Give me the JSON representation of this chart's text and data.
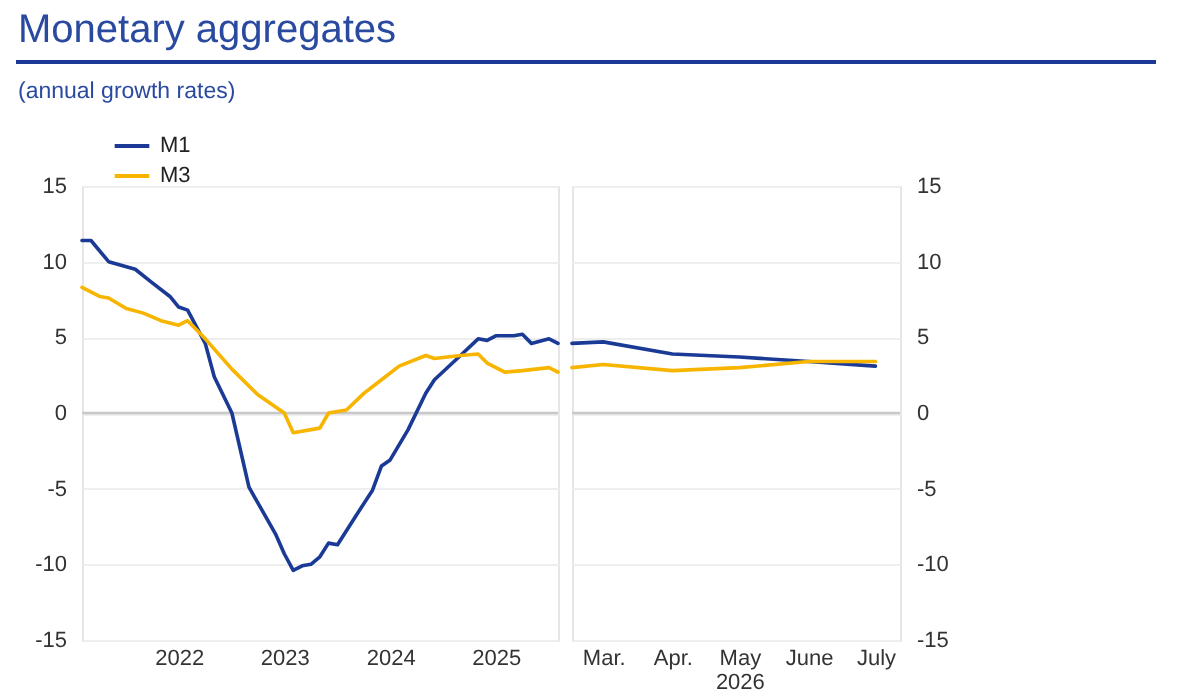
{
  "chart_data": [
    {
      "type": "line",
      "title": "Monetary aggregates",
      "subtitle": "(annual growth rates)",
      "series": [
        {
          "name": "M1",
          "color": "#1a3a95",
          "x": [
            "2021-08",
            "2021-09",
            "2021-11",
            "2022-02",
            "2022-04",
            "2022-06",
            "2022-07",
            "2022-08",
            "2022-10",
            "2022-11",
            "2023-01",
            "2023-03",
            "2023-06",
            "2023-07",
            "2023-08",
            "2023-09",
            "2023-10",
            "2023-11",
            "2023-12",
            "2024-01",
            "2024-03",
            "2024-05",
            "2024-06",
            "2024-07",
            "2024-09",
            "2024-11",
            "2024-12",
            "2025-03",
            "2025-05",
            "2025-06",
            "2025-07",
            "2025-09",
            "2025-10",
            "2025-11",
            "2026-01",
            "2026-02"
          ],
          "values": [
            11.4,
            11.4,
            10.0,
            9.5,
            8.6,
            7.7,
            7.0,
            6.8,
            4.6,
            2.4,
            0.0,
            -4.9,
            -8.0,
            -9.3,
            -10.4,
            -10.1,
            -10.0,
            -9.5,
            -8.6,
            -8.7,
            -6.9,
            -5.1,
            -3.5,
            -3.1,
            -1.1,
            1.3,
            2.2,
            3.8,
            4.9,
            4.8,
            5.1,
            5.1,
            5.2,
            4.6,
            4.9,
            4.6
          ]
        },
        {
          "name": "M3",
          "color": "#f7b500",
          "x": [
            "2021-08",
            "2021-10",
            "2021-11",
            "2022-01",
            "2022-03",
            "2022-05",
            "2022-07",
            "2022-08",
            "2022-10",
            "2023-01",
            "2023-04",
            "2023-07",
            "2023-08",
            "2023-11",
            "2023-12",
            "2024-02",
            "2024-04",
            "2024-06",
            "2024-08",
            "2024-11",
            "2024-12",
            "2025-03",
            "2025-05",
            "2025-06",
            "2025-08",
            "2025-10",
            "2026-01",
            "2026-02"
          ],
          "values": [
            8.3,
            7.7,
            7.6,
            6.9,
            6.6,
            6.1,
            5.8,
            6.1,
            4.9,
            2.9,
            1.2,
            0.0,
            -1.3,
            -1.0,
            0.0,
            0.2,
            1.3,
            2.2,
            3.1,
            3.8,
            3.6,
            3.8,
            3.9,
            3.3,
            2.7,
            2.8,
            3.0,
            2.7
          ]
        }
      ],
      "xlim": [
        "2021-08",
        "2026-02"
      ],
      "xticks": [
        {
          "value": "2022-07",
          "label": "2022"
        },
        {
          "value": "2023-07",
          "label": "2023"
        },
        {
          "value": "2024-07",
          "label": "2024"
        },
        {
          "value": "2025-07",
          "label": "2025"
        }
      ],
      "ylim": [
        -15,
        15
      ],
      "yticks": [
        -15,
        -10,
        -5,
        0,
        5,
        10,
        15
      ],
      "grid": "y",
      "legend": "top left",
      "ref_lines": [
        {
          "axis": "y",
          "value": 0,
          "color": "#c8c8c8"
        }
      ]
    },
    {
      "type": "line",
      "series": [
        {
          "color": "#1a3a95",
          "x": [
            "2026-02-15",
            "2026-03-01",
            "2026-04-01",
            "2026-05-01",
            "2026-06-01",
            "2026-07-01"
          ],
          "values": [
            4.6,
            4.7,
            3.9,
            3.7,
            3.4,
            3.1
          ]
        },
        {
          "color": "#f7b500",
          "x": [
            "2026-02-15",
            "2026-03-01",
            "2026-04-01",
            "2026-05-01",
            "2026-06-01",
            "2026-07-01"
          ],
          "values": [
            3.0,
            3.2,
            2.8,
            3.0,
            3.4,
            3.4
          ]
        }
      ],
      "xlim": [
        "2026-02-15",
        "2026-07-12"
      ],
      "xticks": [
        {
          "value": "2026-03-01",
          "label": "Mar."
        },
        {
          "value": "2026-04-01",
          "label": "Apr."
        },
        {
          "value": "2026-05-01",
          "label": "May\n2026"
        },
        {
          "value": "2026-06-01",
          "label": "June"
        },
        {
          "value": "2026-07-01",
          "label": "July"
        }
      ],
      "ylim": [
        -15,
        15
      ],
      "yticks": [
        -15,
        -10,
        -5,
        0,
        5,
        10,
        15
      ],
      "grid": "y",
      "ref_lines": [
        {
          "axis": "y",
          "value": 0,
          "color": "#c8c8c8"
        }
      ]
    }
  ]
}
